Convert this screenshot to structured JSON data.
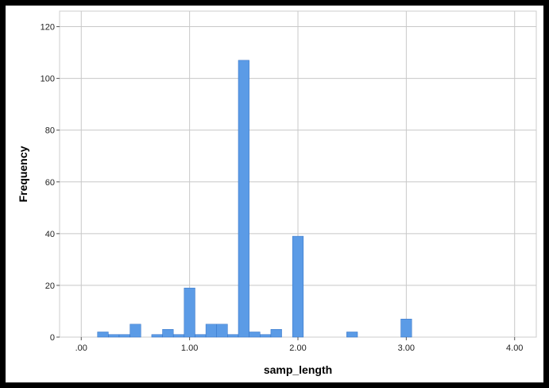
{
  "chart_data": {
    "type": "bar",
    "title": "",
    "xlabel": "samp_length",
    "ylabel": "Frequency",
    "xlim": [
      -0.2,
      4.2
    ],
    "ylim": [
      0,
      126
    ],
    "bin_width": 0.1,
    "x_ticks": [
      0,
      1,
      2,
      3,
      4
    ],
    "x_tick_labels": [
      ".00",
      "1.00",
      "2.00",
      "3.00",
      "4.00"
    ],
    "y_ticks": [
      0,
      20,
      40,
      60,
      80,
      100,
      120
    ],
    "y_tick_labels": [
      "0",
      "20",
      "40",
      "60",
      "80",
      "100",
      "120"
    ],
    "grid": true,
    "legend": "none",
    "bar_color": "#5b9be6",
    "bar_edge_color": "#2f6fc4",
    "x": [
      0.2,
      0.3,
      0.4,
      0.5,
      0.7,
      0.8,
      0.9,
      1.0,
      1.1,
      1.2,
      1.3,
      1.4,
      1.5,
      1.6,
      1.7,
      1.8,
      2.0,
      2.5,
      3.0
    ],
    "values": [
      2,
      1,
      1,
      5,
      1,
      3,
      1,
      19,
      1,
      5,
      5,
      1,
      107,
      2,
      1,
      3,
      39,
      2,
      7
    ]
  }
}
